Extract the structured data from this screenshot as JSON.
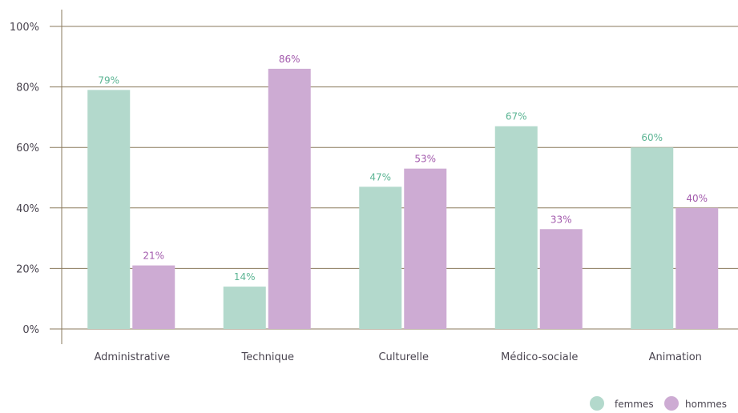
{
  "chart_data": {
    "type": "bar",
    "categories": [
      "Administrative",
      "Technique",
      "Culturelle",
      "Médico-sociale",
      "Animation"
    ],
    "series": [
      {
        "name": "femmes",
        "color": "#b3d9cc",
        "label_color": "#5cb594",
        "values": [
          79,
          14,
          47,
          67,
          60
        ]
      },
      {
        "name": "hommes",
        "color": "#cdabd3",
        "label_color": "#a259ac",
        "values": [
          21,
          86,
          53,
          33,
          40
        ]
      }
    ],
    "value_suffix": "%",
    "ylim": [
      0,
      100
    ],
    "yticks": [
      0,
      20,
      40,
      60,
      80,
      100
    ],
    "ytick_labels": [
      "0%",
      "20%",
      "40%",
      "60%",
      "80%",
      "100%"
    ],
    "grid": true,
    "grid_color": "#8a7a5c",
    "legend": {
      "position": "bottom-right"
    }
  }
}
